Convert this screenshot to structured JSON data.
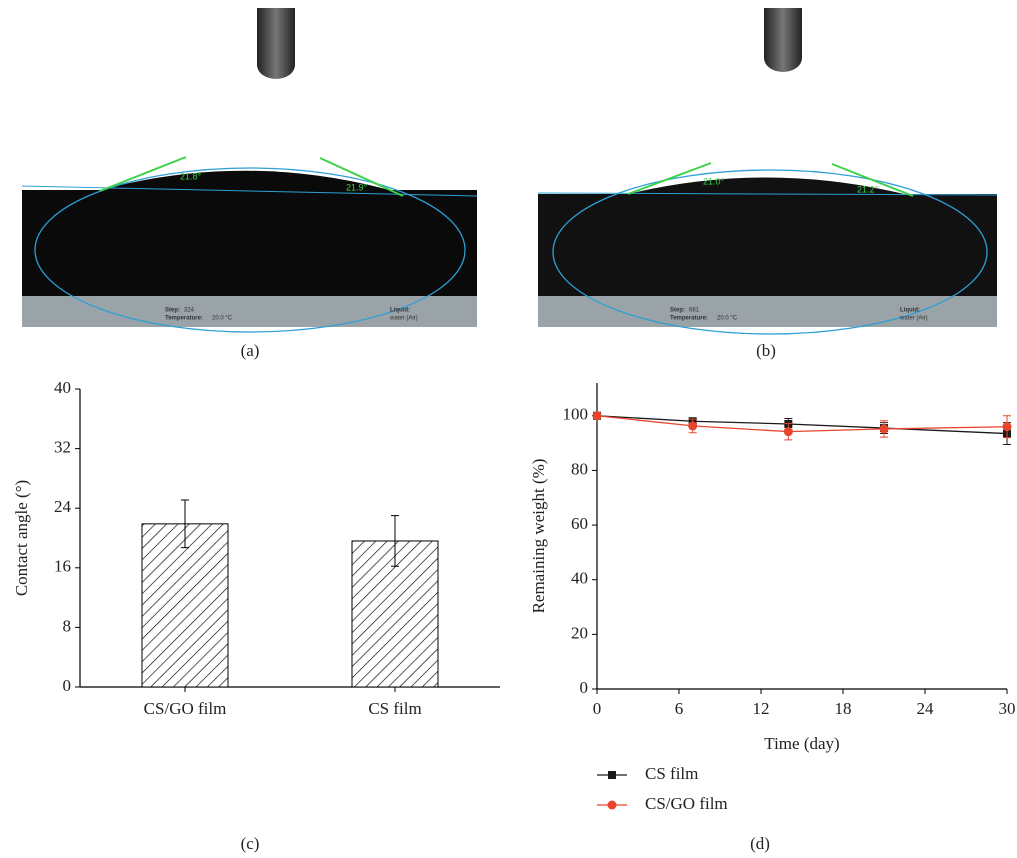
{
  "panels": [
    {
      "caption": "(a)",
      "angles": [
        "21.8°",
        "21.9°"
      ],
      "info": {
        "step_label": "Step:",
        "step": "324",
        "temperature_label": "Temperature:",
        "temperature": "20.0 °C",
        "liquid_label": "Liquid:",
        "liquid": "water (Air)"
      }
    },
    {
      "caption": "(b)",
      "angles": [
        "21.0°",
        "21.2°"
      ],
      "info": {
        "step_label": "Step:",
        "step": "681",
        "temperature_label": "Temperature:",
        "temperature": "20.0 °C",
        "liquid_label": "Liquid:",
        "liquid": "water (Air)"
      }
    }
  ],
  "chart_data": [
    {
      "type": "bar",
      "caption": "(c)",
      "y_label": "Contact angle (°)",
      "categories": [
        "CS/GO film",
        "CS film"
      ],
      "values": [
        21.9,
        19.6
      ],
      "errors": [
        3.2,
        3.4
      ],
      "color": "#000000",
      "hatch": true,
      "ylim": [
        0,
        40
      ],
      "yticks": [
        0,
        8,
        16,
        24,
        32,
        40
      ]
    },
    {
      "type": "line",
      "caption": "(d)",
      "x_label": "Time (day)",
      "y_label": "Remaining weight (%)",
      "x": [
        0,
        7,
        14,
        21,
        30
      ],
      "xlim": [
        0,
        30
      ],
      "xticks": [
        0,
        6,
        12,
        18,
        24,
        30
      ],
      "ylim": [
        0,
        112
      ],
      "yticks": [
        0,
        20,
        40,
        60,
        80,
        100
      ],
      "series": [
        {
          "name": "CS film",
          "color": "#1a1a1a",
          "marker": "square",
          "values": [
            100,
            98,
            97,
            95.5,
            93.5
          ],
          "errors": [
            0.5,
            1,
            2,
            2,
            4
          ]
        },
        {
          "name": "CS/GO film",
          "color": "#e8452c",
          "marker": "circle",
          "values": [
            100,
            96.3,
            94.2,
            95.2,
            96
          ],
          "errors": [
            1,
            2.5,
            3,
            3,
            4
          ]
        }
      ]
    }
  ]
}
